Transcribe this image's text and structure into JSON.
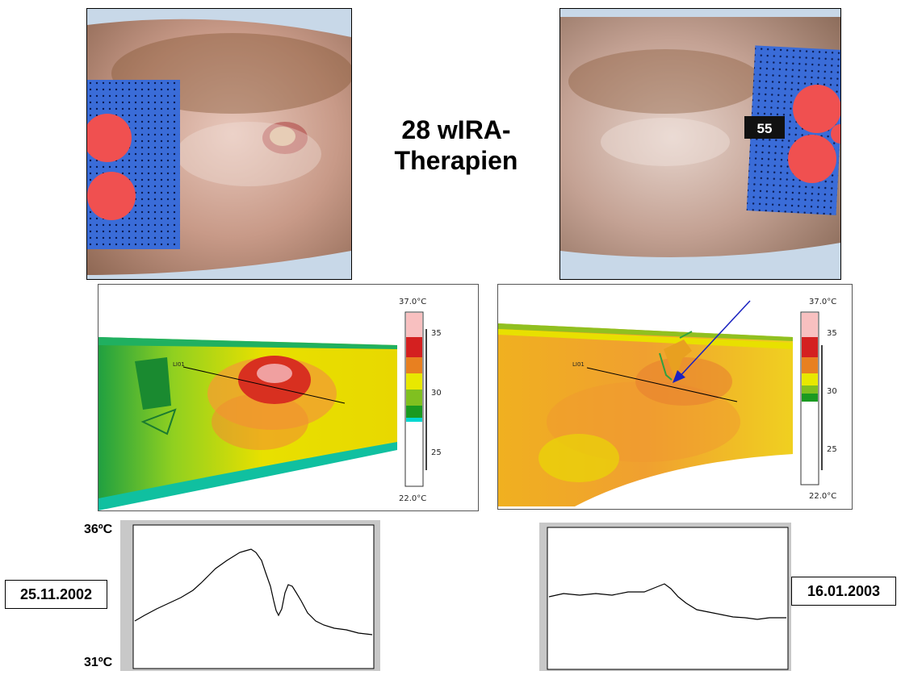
{
  "title": {
    "line1": "28 wIRA-",
    "line2": "Therapien"
  },
  "photo_right": {
    "badge": "55"
  },
  "thermo_scale": {
    "max_label": "37.0°C",
    "min_label": "22.0°C",
    "ticks": [
      "35",
      "30",
      "25"
    ]
  },
  "thermo_line_label": "LI01",
  "profile_axis": {
    "top": "36ºC",
    "bottom": "31ºC"
  },
  "dates": {
    "left": "25.11.2002",
    "right": "16.01.2003"
  },
  "colors": {
    "scale_red": "#d42020",
    "scale_yellow": "#e8e800",
    "scale_green": "#1a9a20",
    "scale_cyan": "#00d8d0",
    "arrow": "#1a22c0"
  }
}
